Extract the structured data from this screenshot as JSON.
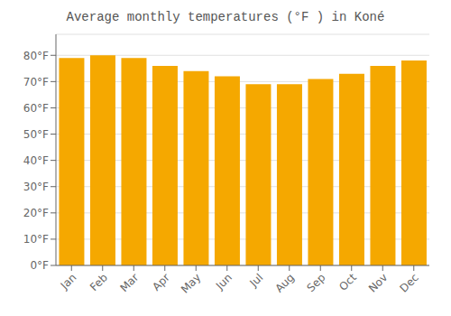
{
  "chart_data": {
    "type": "bar",
    "title": "Average monthly temperatures (°F ) in Koné",
    "categories": [
      "Jan",
      "Feb",
      "Mar",
      "Apr",
      "May",
      "Jun",
      "Jul",
      "Aug",
      "Sep",
      "Oct",
      "Nov",
      "Dec"
    ],
    "values": [
      79,
      80,
      79,
      76,
      74,
      72,
      69,
      69,
      71,
      73,
      76,
      78
    ],
    "color": "#F5A800",
    "ylim": [
      0,
      88
    ],
    "yticks": [
      {
        "value": 0,
        "label": "0°F"
      },
      {
        "value": 10,
        "label": "10°F"
      },
      {
        "value": 20,
        "label": "20°F"
      },
      {
        "value": 30,
        "label": "30°F"
      },
      {
        "value": 40,
        "label": "40°F"
      },
      {
        "value": 50,
        "label": "50°F"
      },
      {
        "value": 60,
        "label": "60°F"
      },
      {
        "value": 70,
        "label": "70°F"
      },
      {
        "value": 80,
        "label": "80°F"
      }
    ],
    "grid": true
  }
}
